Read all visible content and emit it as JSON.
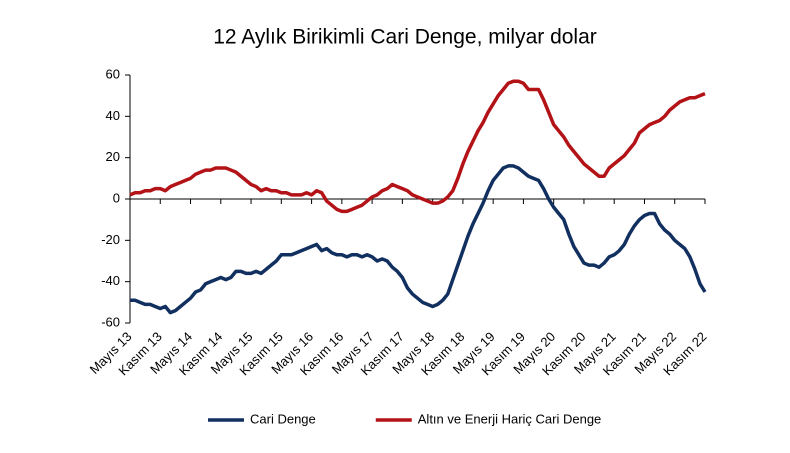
{
  "chart_data": {
    "type": "line",
    "title": "12 Aylık Birikimli Cari Denge, milyar dolar",
    "categories": [
      "Mayıs 13",
      null,
      null,
      null,
      null,
      null,
      "Kasım 13",
      null,
      null,
      null,
      null,
      null,
      "Mayıs 14",
      null,
      null,
      null,
      null,
      null,
      "Kasım 14",
      null,
      null,
      null,
      null,
      null,
      "Mayıs 15",
      null,
      null,
      null,
      null,
      null,
      "Kasım 15",
      null,
      null,
      null,
      null,
      null,
      "Mayıs 16",
      null,
      null,
      null,
      null,
      null,
      "Kasım 16",
      null,
      null,
      null,
      null,
      null,
      "Mayıs 17",
      null,
      null,
      null,
      null,
      null,
      "Kasım 17",
      null,
      null,
      null,
      null,
      null,
      "Mayıs 18",
      null,
      null,
      null,
      null,
      null,
      "Kasım 18",
      null,
      null,
      null,
      null,
      null,
      "Mayıs 19",
      null,
      null,
      null,
      null,
      null,
      "Kasım 19",
      null,
      null,
      null,
      null,
      null,
      "Mayıs 20",
      null,
      null,
      null,
      null,
      null,
      "Kasım 20",
      null,
      null,
      null,
      null,
      null,
      "Mayıs 21",
      null,
      null,
      null,
      null,
      null,
      "Kasım 21",
      null,
      null,
      null,
      null,
      null,
      "Mayıs 22",
      null,
      null,
      null,
      null,
      null,
      "Kasım 22"
    ],
    "series": [
      {
        "name": "Cari Denge",
        "color": "#12305f",
        "values": [
          -49,
          -49,
          -50,
          -51,
          -51,
          -52,
          -53,
          -52,
          -55,
          -54,
          -52,
          -50,
          -48,
          -45,
          -44,
          -41,
          -40,
          -39,
          -38,
          -39,
          -38,
          -35,
          -35,
          -36,
          -36,
          -35,
          -36,
          -34,
          -32,
          -30,
          -27,
          -27,
          -27,
          -26,
          -25,
          -24,
          -23,
          -22,
          -25,
          -24,
          -26,
          -27,
          -27,
          -28,
          -27,
          -27,
          -28,
          -27,
          -28,
          -30,
          -29,
          -30,
          -33,
          -35,
          -38,
          -43,
          -46,
          -48,
          -50,
          -51,
          -52,
          -51,
          -49,
          -46,
          -39,
          -32,
          -25,
          -18,
          -12,
          -7,
          -2,
          4,
          9,
          12,
          15,
          16,
          16,
          15,
          13,
          11,
          10,
          9,
          5,
          0,
          -4,
          -7,
          -10,
          -17,
          -23,
          -27,
          -31,
          -32,
          -32,
          -33,
          -31,
          -28,
          -27,
          -25,
          -22,
          -17,
          -13,
          -10,
          -8,
          -7,
          -7,
          -12,
          -15,
          -17,
          -20,
          -22,
          -24,
          -28,
          -34,
          -41,
          -45
        ]
      },
      {
        "name": "Altın ve Enerji Hariç Cari Denge",
        "color": "#b31217",
        "values": [
          2,
          3,
          3,
          4,
          4,
          5,
          5,
          4,
          6,
          7,
          8,
          9,
          10,
          12,
          13,
          14,
          14,
          15,
          15,
          15,
          14,
          13,
          11,
          9,
          7,
          6,
          4,
          5,
          4,
          4,
          3,
          3,
          2,
          2,
          2,
          3,
          2,
          4,
          3,
          -1,
          -3,
          -5,
          -6,
          -6,
          -5,
          -4,
          -3,
          -1,
          1,
          2,
          4,
          5,
          7,
          6,
          5,
          4,
          2,
          1,
          0,
          -1,
          -2,
          -2,
          -1,
          1,
          4,
          10,
          17,
          23,
          28,
          33,
          37,
          42,
          46,
          50,
          53,
          56,
          57,
          57,
          56,
          53,
          53,
          53,
          48,
          42,
          36,
          33,
          30,
          26,
          23,
          20,
          17,
          15,
          13,
          11,
          11,
          15,
          17,
          19,
          21,
          24,
          27,
          32,
          34,
          36,
          37,
          38,
          40,
          43,
          45,
          47,
          48,
          49,
          49,
          50,
          51
        ]
      }
    ],
    "ylim": [
      -60,
      60
    ],
    "yticks": [
      -60,
      -40,
      -20,
      0,
      20,
      40,
      60
    ],
    "grid": false,
    "legend": "bottom"
  }
}
